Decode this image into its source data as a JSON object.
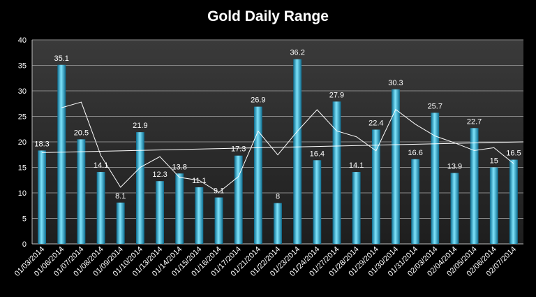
{
  "chart_data": {
    "type": "bar",
    "title": "Gold Daily Range",
    "categories": [
      "01/03/2014",
      "01/06/2014",
      "01/07/2014",
      "01/08/2014",
      "01/09/2014",
      "01/10/2014",
      "01/13/2014",
      "01/14/2014",
      "01/15/2014",
      "01/16/2014",
      "01/17/2014",
      "01/21/2014",
      "01/22/2014",
      "01/23/2014",
      "01/24/2014",
      "01/27/2014",
      "01/28/2014",
      "01/29/2014",
      "01/30/2014",
      "01/31/2014",
      "02/03/2014",
      "02/04/2014",
      "02/05/2014",
      "02/06/2014",
      "02/07/2014"
    ],
    "values": [
      18.3,
      35.1,
      20.5,
      14.1,
      8.1,
      21.9,
      12.3,
      13.8,
      11.1,
      9.1,
      17.3,
      26.9,
      8,
      36.2,
      16.4,
      27.9,
      14.1,
      22.4,
      30.3,
      16.6,
      25.7,
      13.9,
      22.7,
      15,
      16.5
    ],
    "value_labels": [
      "18.3",
      "35.1",
      "20.5",
      "14.1",
      "8.1",
      "21.9",
      "12.3",
      "13.8",
      "11.1",
      "9.1",
      "17.3",
      "26.9",
      "8",
      "36.2",
      "16.4",
      "27.9",
      "14.1",
      "22.4",
      "30.3",
      "16.6",
      "25.7",
      "13.9",
      "22.7",
      "15",
      "16.5"
    ],
    "moving_average": [
      null,
      26.7,
      27.8,
      17.3,
      11.1,
      15.0,
      17.1,
      13.05,
      12.45,
      10.1,
      13.2,
      22.1,
      17.45,
      22.1,
      26.3,
      22.15,
      21.0,
      18.25,
      26.35,
      23.45,
      21.15,
      19.8,
      18.3,
      18.85,
      15.75
    ],
    "trendline": {
      "start": 17.9,
      "end": 20.0
    },
    "yticks": [
      "0",
      "5",
      "10",
      "15",
      "20",
      "25",
      "30",
      "35",
      "40"
    ],
    "ylim": [
      0,
      40
    ],
    "grid": true,
    "colors": {
      "bar": "#2fb3d9",
      "bar_light": "#7fe3fb",
      "bar_dark": "#0d6c8f",
      "plot_bg": "#2a2a2a",
      "grid": "#8a8a8a",
      "line": "#ffffff"
    }
  }
}
